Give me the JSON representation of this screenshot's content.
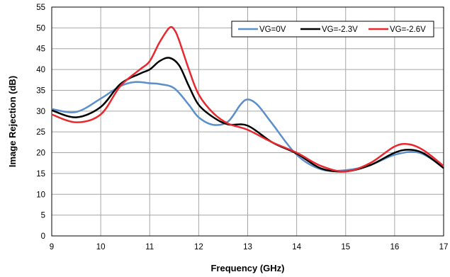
{
  "chart_data": {
    "type": "line",
    "title": "",
    "xlabel": "Frequency (GHz)",
    "ylabel": "Image Rejection (dB)",
    "xlim": [
      9,
      17
    ],
    "ylim": [
      0,
      55
    ],
    "xticks": [
      9,
      10,
      11,
      12,
      13,
      14,
      15,
      16,
      17
    ],
    "yticks": [
      0,
      5,
      10,
      15,
      20,
      25,
      30,
      35,
      40,
      45,
      50,
      55
    ],
    "grid": true,
    "legend_position": "top-right",
    "series": [
      {
        "name": "VG=0V",
        "color": "#5B8FCC",
        "x": [
          9,
          9.5,
          10,
          10.4,
          10.7,
          11,
          11.2,
          11.5,
          11.8,
          12,
          12.3,
          12.6,
          12.85,
          13,
          13.2,
          13.5,
          14,
          14.5,
          15,
          15.5,
          16,
          16.5,
          17
        ],
        "y": [
          30.5,
          29.8,
          33,
          36,
          37,
          36.7,
          36.5,
          35.5,
          31.5,
          28.5,
          26.7,
          27.5,
          31.5,
          32.8,
          31.5,
          27,
          19.5,
          16,
          15.8,
          17,
          19.5,
          20,
          16.5
        ]
      },
      {
        "name": "VG=-2.3V",
        "color": "#000000",
        "x": [
          9,
          9.5,
          10,
          10.4,
          10.8,
          11,
          11.2,
          11.4,
          11.6,
          11.8,
          12,
          12.3,
          12.6,
          13,
          13.5,
          14,
          14.5,
          15,
          15.5,
          16,
          16.3,
          16.6,
          17
        ],
        "y": [
          30.2,
          28.5,
          31,
          36.5,
          39,
          40,
          42,
          42.8,
          41,
          36,
          31.5,
          28.5,
          26.8,
          26.5,
          22.5,
          19.8,
          16.2,
          15.5,
          17,
          20,
          20.7,
          19.8,
          16.3
        ]
      },
      {
        "name": "VG=-2.6V",
        "color": "#E8282E",
        "x": [
          9,
          9.5,
          10,
          10.4,
          10.8,
          11,
          11.2,
          11.4,
          11.5,
          11.6,
          11.8,
          12,
          12.3,
          12.6,
          13,
          13.5,
          14,
          14.5,
          15,
          15.5,
          16,
          16.3,
          16.6,
          17
        ],
        "y": [
          29.2,
          27.3,
          29.2,
          36,
          40,
          42,
          46.5,
          50,
          49.6,
          47,
          40,
          34,
          29.5,
          27,
          25.5,
          22.5,
          20,
          16.8,
          15.5,
          17.5,
          21.5,
          22,
          20.5,
          16.8
        ]
      }
    ]
  }
}
